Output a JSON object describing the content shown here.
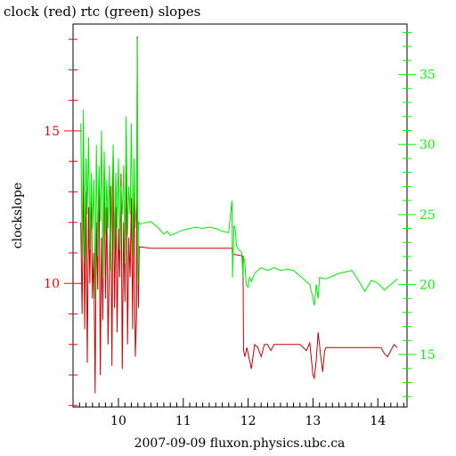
{
  "chart_data": {
    "type": "line",
    "title": "clock (red) rtc (green) slopes",
    "xlabel": "2007-09-09 fluxon.physics.ubc.ca",
    "ylabel": "clockslope",
    "xlim": [
      9.3,
      14.45
    ],
    "xticks": [
      "10",
      "11",
      "12",
      "13",
      "14"
    ],
    "xtick_values": [
      10,
      11,
      12,
      13,
      14
    ],
    "left_axis": {
      "color": "#ff0000",
      "ylim": [
        5.95,
        18.5
      ],
      "ticks": [
        "10",
        "15"
      ],
      "tick_values": [
        10,
        15
      ]
    },
    "right_axis": {
      "color": "#00ff00",
      "ylim": [
        11.25,
        38.6
      ],
      "ticks": [
        "15",
        "20",
        "25",
        "30",
        "35"
      ],
      "tick_values": [
        15,
        20,
        25,
        30,
        35
      ]
    },
    "grid": false,
    "series": [
      {
        "name": "clock",
        "axis": "left",
        "color": "#cc0000",
        "x": [
          9.42,
          9.44,
          9.46,
          9.48,
          9.5,
          9.52,
          9.54,
          9.56,
          9.58,
          9.6,
          9.62,
          9.64,
          9.66,
          9.68,
          9.7,
          9.72,
          9.74,
          9.76,
          9.78,
          9.8,
          9.82,
          9.84,
          9.86,
          9.88,
          9.9,
          9.92,
          9.94,
          9.96,
          9.98,
          10.0,
          10.02,
          10.04,
          10.06,
          10.08,
          10.1,
          10.12,
          10.14,
          10.16,
          10.18,
          10.2,
          10.22,
          10.24,
          10.26,
          10.28,
          10.29,
          10.3,
          10.31,
          10.32,
          10.5,
          10.8,
          11.2,
          11.6,
          11.75,
          11.76,
          11.8,
          11.92,
          11.93,
          11.95,
          11.98,
          12.0,
          12.05,
          12.1,
          12.15,
          12.2,
          12.25,
          12.3,
          12.35,
          12.4,
          12.5,
          12.6,
          12.7,
          12.8,
          12.9,
          12.95,
          13.0,
          13.02,
          13.05,
          13.08,
          13.1,
          13.12,
          13.15,
          13.18,
          13.2,
          13.4,
          13.6,
          13.8,
          14.0,
          14.05,
          14.1,
          14.15,
          14.2,
          14.25,
          14.3
        ],
        "values": [
          12.0,
          9.0,
          14.0,
          8.5,
          13.0,
          7.4,
          12.5,
          10.0,
          13.5,
          9.5,
          11.0,
          6.4,
          12.0,
          9.8,
          13.8,
          7.0,
          11.5,
          8.8,
          14.0,
          9.5,
          12.5,
          8.0,
          10.5,
          13.2,
          7.3,
          14.1,
          9.2,
          12.5,
          8.4,
          11.8,
          10.2,
          13.6,
          7.2,
          12.0,
          9.4,
          14.0,
          8.0,
          11.5,
          10.2,
          12.8,
          8.5,
          13.5,
          7.6,
          9.0,
          18.1,
          10.4,
          9.2,
          11.2,
          11.15,
          11.15,
          11.15,
          11.15,
          11.15,
          10.95,
          10.95,
          10.9,
          7.8,
          7.6,
          7.9,
          7.7,
          7.2,
          8.0,
          7.9,
          7.6,
          8.0,
          8.0,
          7.8,
          8.0,
          8.0,
          8.0,
          8.0,
          8.0,
          7.8,
          8.05,
          7.0,
          6.9,
          7.5,
          8.4,
          8.0,
          7.6,
          7.1,
          7.8,
          7.9,
          7.9,
          7.9,
          7.9,
          7.9,
          7.9,
          7.7,
          7.6,
          7.8,
          8.0,
          7.9
        ]
      },
      {
        "name": "rtc",
        "axis": "right",
        "color": "#00ee00",
        "x": [
          9.42,
          9.44,
          9.46,
          9.48,
          9.5,
          9.52,
          9.54,
          9.56,
          9.58,
          9.6,
          9.62,
          9.64,
          9.66,
          9.68,
          9.7,
          9.72,
          9.74,
          9.76,
          9.78,
          9.8,
          9.82,
          9.84,
          9.86,
          9.88,
          9.9,
          9.92,
          9.94,
          9.96,
          9.98,
          10.0,
          10.02,
          10.04,
          10.06,
          10.08,
          10.1,
          10.12,
          10.14,
          10.16,
          10.18,
          10.2,
          10.22,
          10.24,
          10.26,
          10.28,
          10.29,
          10.3,
          10.31,
          10.33,
          10.4,
          10.5,
          10.6,
          10.7,
          10.75,
          10.8,
          10.85,
          10.9,
          11.0,
          11.1,
          11.2,
          11.3,
          11.4,
          11.5,
          11.6,
          11.7,
          11.75,
          11.76,
          11.78,
          11.8,
          11.82,
          11.85,
          11.9,
          11.92,
          11.93,
          11.95,
          11.97,
          12.0,
          12.02,
          12.05,
          12.1,
          12.15,
          12.2,
          12.3,
          12.4,
          12.5,
          12.6,
          12.7,
          12.8,
          12.9,
          12.95,
          13.0,
          13.02,
          13.05,
          13.08,
          13.1,
          13.2,
          13.4,
          13.6,
          13.7,
          13.8,
          13.9,
          14.0,
          14.1,
          14.2,
          14.25,
          14.3
        ],
        "values": [
          31.5,
          22.0,
          32.5,
          21.5,
          29.0,
          25.0,
          30.5,
          22.5,
          28.0,
          24.0,
          27.5,
          19.0,
          30.0,
          22.0,
          28.5,
          24.5,
          31.0,
          20.5,
          29.5,
          23.5,
          27.5,
          24.0,
          28.5,
          21.0,
          26.0,
          30.0,
          22.5,
          28.0,
          24.0,
          29.0,
          22.5,
          27.0,
          25.0,
          28.5,
          21.5,
          32.0,
          23.5,
          27.0,
          25.0,
          31.5,
          22.0,
          29.0,
          24.0,
          26.0,
          37.5,
          20.0,
          24.5,
          24.3,
          24.4,
          24.5,
          24.1,
          23.6,
          23.8,
          23.5,
          23.6,
          23.7,
          23.9,
          24.0,
          24.1,
          24.0,
          24.1,
          24.0,
          23.8,
          23.7,
          26.0,
          20.5,
          24.2,
          24.0,
          22.8,
          22.5,
          22.3,
          20.5,
          22.0,
          21.5,
          20.0,
          19.8,
          20.5,
          20.2,
          20.8,
          21.0,
          21.2,
          21.0,
          21.2,
          21.0,
          21.1,
          21.0,
          20.6,
          20.2,
          20.0,
          19.0,
          18.5,
          20.0,
          19.0,
          20.5,
          20.4,
          20.8,
          21.0,
          20.3,
          19.5,
          20.3,
          20.1,
          19.6,
          20.0,
          20.2,
          20.4
        ]
      }
    ]
  }
}
